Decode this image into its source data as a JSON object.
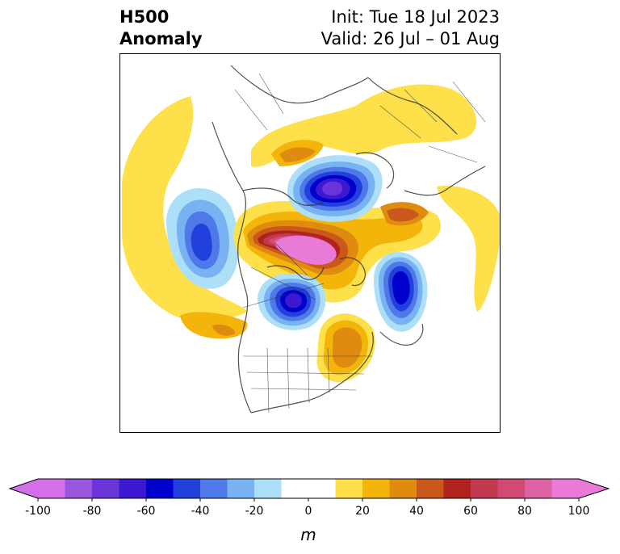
{
  "header": {
    "title_line1": "H500",
    "title_line2": "Anomaly",
    "init": "Init: Tue 18 Jul 2023",
    "valid": "Valid: 26 Jul – 01 Aug"
  },
  "colorbar": {
    "unit": "m",
    "tick_labels": [
      "-100",
      "-80",
      "-60",
      "-40",
      "-20",
      "0",
      "20",
      "40",
      "60",
      "80",
      "100"
    ],
    "bins": [
      -100,
      -90,
      -80,
      -70,
      -60,
      -50,
      -40,
      -30,
      -20,
      -10,
      10,
      20,
      30,
      40,
      50,
      60,
      70,
      80,
      90,
      100
    ],
    "colors": [
      "#d56ee9",
      "#9a55df",
      "#6a35d8",
      "#3c19d1",
      "#0000cd",
      "#2140dc",
      "#4f79e8",
      "#78b2f2",
      "#aedff9",
      "#ffffff",
      "#fde04a",
      "#f3b50a",
      "#df8b10",
      "#c9581a",
      "#b0231f",
      "#c13a50",
      "#d24a73",
      "#dc62a4",
      "#e97ad8"
    ],
    "extend_low_color": "#d56ee9",
    "extend_high_color": "#e97ad8"
  },
  "map": {
    "projection": "north-polar-stereographic",
    "region": "North America / Arctic",
    "anomaly_centers": [
      {
        "label": "positive",
        "value_m": 100
      },
      {
        "label": "negative",
        "value_m": -90
      },
      {
        "label": "negative",
        "value_m": -80
      },
      {
        "label": "negative",
        "value_m": -60
      },
      {
        "label": "positive",
        "value_m": 40
      }
    ]
  }
}
